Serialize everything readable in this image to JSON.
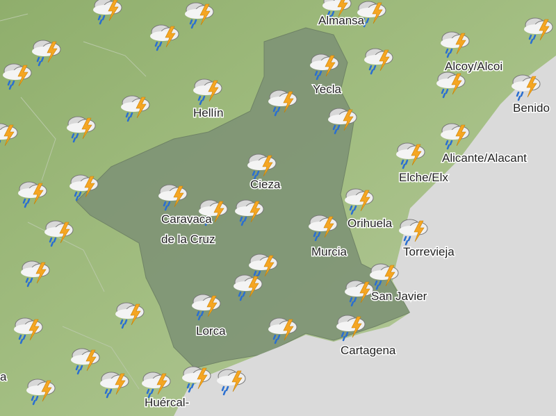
{
  "map": {
    "labels": [
      {
        "name": "Almansa"
      },
      {
        "name": "Alcoy/Alcoi"
      },
      {
        "name": "Yecla"
      },
      {
        "name": "Hellín"
      },
      {
        "name": "Benido"
      },
      {
        "name": "Alicante/Alacant"
      },
      {
        "name": "Elche/Elx"
      },
      {
        "name": "Cieza"
      },
      {
        "name": "Caravaca"
      },
      {
        "name": "de la Cruz"
      },
      {
        "name": "Orihuela"
      },
      {
        "name": "Murcia"
      },
      {
        "name": "Torrevieja"
      },
      {
        "name": "San Javier"
      },
      {
        "name": "Lorca"
      },
      {
        "name": "Cartagena"
      },
      {
        "name": "Huércal-"
      },
      {
        "name": "a"
      }
    ]
  }
}
